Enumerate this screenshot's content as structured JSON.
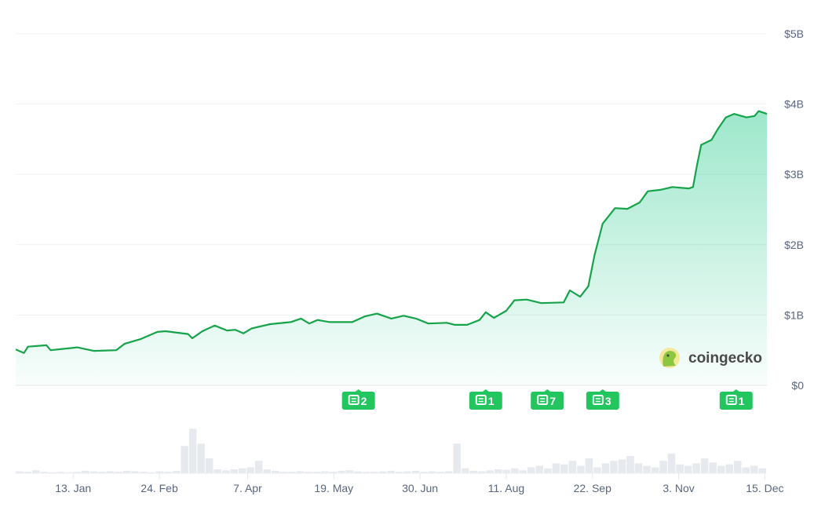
{
  "chart_data": {
    "type": "area",
    "title": "",
    "xlabel": "",
    "ylabel": "",
    "xlim": [
      "2023-12-16",
      "2024-12-16"
    ],
    "ylim": [
      0,
      5
    ],
    "grid": true,
    "colors": {
      "line": "#16a34a",
      "fill_top": "#16c784",
      "volume": "#e6e9ee",
      "news": "#22c55e"
    },
    "y_ticks": [
      {
        "value": 0,
        "label": "$0"
      },
      {
        "value": 1,
        "label": "$1B"
      },
      {
        "value": 2,
        "label": "$2B"
      },
      {
        "value": 3,
        "label": "$3B"
      },
      {
        "value": 4,
        "label": "$4B"
      },
      {
        "value": 5,
        "label": "$5B"
      }
    ],
    "x_ticks": [
      {
        "date": "2024-01-13",
        "label": "13. Jan"
      },
      {
        "date": "2024-02-24",
        "label": "24. Feb"
      },
      {
        "date": "2024-04-07",
        "label": "7. Apr"
      },
      {
        "date": "2024-05-19",
        "label": "19. May"
      },
      {
        "date": "2024-06-30",
        "label": "30. Jun"
      },
      {
        "date": "2024-08-11",
        "label": "11. Aug"
      },
      {
        "date": "2024-09-22",
        "label": "22. Sep"
      },
      {
        "date": "2024-11-03",
        "label": "3. Nov"
      },
      {
        "date": "2024-12-15",
        "label": "15. Dec"
      }
    ],
    "series": [
      {
        "x": [
          "2023-12-16",
          "2023-12-20",
          "2023-12-22",
          "2023-12-31",
          "2024-01-02",
          "2024-01-15",
          "2024-01-23",
          "2024-02-03",
          "2024-02-07",
          "2024-02-15",
          "2024-02-23",
          "2024-02-27",
          "2024-03-09",
          "2024-03-11",
          "2024-03-16",
          "2024-03-22",
          "2024-03-28",
          "2024-04-01",
          "2024-04-05",
          "2024-04-09",
          "2024-04-18",
          "2024-04-28",
          "2024-05-03",
          "2024-05-07",
          "2024-05-11",
          "2024-05-17",
          "2024-05-28",
          "2024-06-03",
          "2024-06-09",
          "2024-06-16",
          "2024-06-22",
          "2024-06-28",
          "2024-07-04",
          "2024-07-13",
          "2024-07-17",
          "2024-07-23",
          "2024-07-29",
          "2024-08-01",
          "2024-08-05",
          "2024-08-11",
          "2024-08-15",
          "2024-08-21",
          "2024-08-28",
          "2024-09-08",
          "2024-09-11",
          "2024-09-16",
          "2024-09-20",
          "2024-09-23",
          "2024-09-27",
          "2024-10-03",
          "2024-10-09",
          "2024-10-15",
          "2024-10-19",
          "2024-10-25",
          "2024-10-31",
          "2024-11-08",
          "2024-11-10",
          "2024-11-12",
          "2024-11-14",
          "2024-11-19",
          "2024-11-22",
          "2024-11-26",
          "2024-11-30",
          "2024-12-06",
          "2024-12-10",
          "2024-12-12",
          "2024-12-16"
        ],
        "values": [
          0.51,
          0.46,
          0.55,
          0.57,
          0.5,
          0.54,
          0.49,
          0.5,
          0.59,
          0.66,
          0.76,
          0.77,
          0.73,
          0.67,
          0.77,
          0.85,
          0.78,
          0.79,
          0.74,
          0.81,
          0.87,
          0.9,
          0.95,
          0.88,
          0.93,
          0.9,
          0.9,
          0.98,
          1.02,
          0.95,
          0.99,
          0.95,
          0.88,
          0.89,
          0.86,
          0.86,
          0.93,
          1.04,
          0.96,
          1.06,
          1.21,
          1.22,
          1.17,
          1.18,
          1.35,
          1.26,
          1.41,
          1.85,
          2.3,
          2.52,
          2.51,
          2.6,
          2.76,
          2.78,
          2.82,
          2.8,
          2.82,
          3.14,
          3.42,
          3.49,
          3.64,
          3.81,
          3.86,
          3.81,
          3.83,
          3.9,
          3.86
        ]
      }
    ],
    "volume_relative": [
      4,
      3,
      6,
      3,
      2,
      3,
      2,
      3,
      5,
      4,
      3,
      4,
      3,
      5,
      4,
      3,
      2,
      4,
      3,
      5,
      55,
      90,
      60,
      30,
      8,
      6,
      8,
      10,
      12,
      25,
      8,
      5,
      3,
      3,
      4,
      3,
      3,
      4,
      3,
      5,
      6,
      4,
      3,
      3,
      4,
      5,
      3,
      4,
      5,
      3,
      4,
      3,
      4,
      60,
      10,
      5,
      4,
      6,
      8,
      7,
      10,
      6,
      12,
      15,
      10,
      20,
      18,
      25,
      15,
      30,
      12,
      20,
      25,
      28,
      35,
      20,
      15,
      12,
      25,
      40,
      18,
      15,
      20,
      30,
      22,
      15,
      18,
      25,
      12,
      15,
      10
    ],
    "news_markers": [
      {
        "date": "2024-05-31",
        "count": "2"
      },
      {
        "date": "2024-08-01",
        "count": "1"
      },
      {
        "date": "2024-08-31",
        "count": "7"
      },
      {
        "date": "2024-09-27",
        "count": "3"
      },
      {
        "date": "2024-12-01",
        "count": "1"
      }
    ]
  },
  "watermark": {
    "text": "coingecko"
  }
}
